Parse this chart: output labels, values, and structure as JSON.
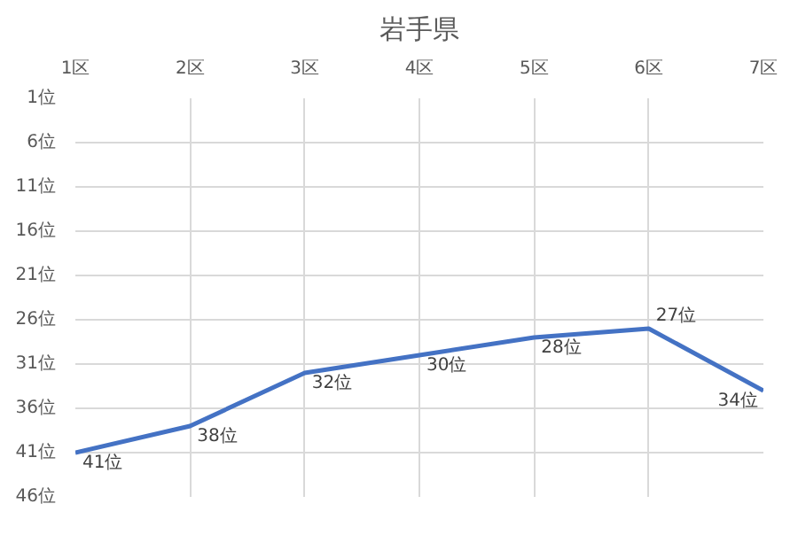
{
  "chart_data": {
    "type": "line",
    "title": "岩手県",
    "categories": [
      "1区",
      "2区",
      "3区",
      "4区",
      "5区",
      "6区",
      "7区"
    ],
    "series": [
      {
        "color": "#4472c4",
        "values": [
          41,
          38,
          32,
          30,
          28,
          27,
          34
        ],
        "value_labels": [
          "41位",
          "38位",
          "32位",
          "30位",
          "28位",
          "27位",
          "34位"
        ]
      }
    ],
    "ylim": [
      46,
      1
    ],
    "yticks": [
      {
        "value": 1,
        "label": "1位"
      },
      {
        "value": 6,
        "label": "6位"
      },
      {
        "value": 11,
        "label": "11位"
      },
      {
        "value": 16,
        "label": "16位"
      },
      {
        "value": 21,
        "label": "21位"
      },
      {
        "value": 26,
        "label": "26位"
      },
      {
        "value": 31,
        "label": "31位"
      },
      {
        "value": 36,
        "label": "36位"
      },
      {
        "value": 41,
        "label": "41位"
      },
      {
        "value": 46,
        "label": "46位"
      }
    ],
    "grid": true,
    "marker": "none",
    "line_style": "solid"
  }
}
